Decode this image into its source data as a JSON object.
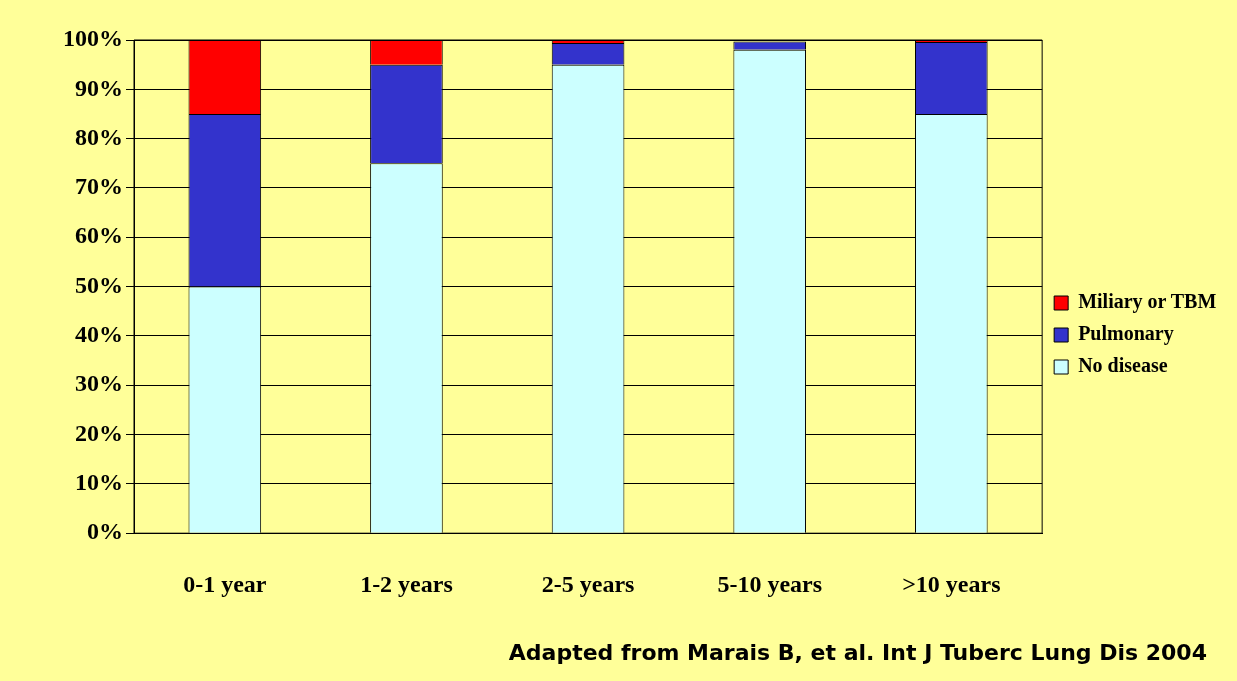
{
  "chart_data": {
    "type": "bar",
    "stacked": true,
    "categories": [
      "0-1 year",
      "1-2 years",
      "2-5 years",
      "5-10 years",
      ">10 years"
    ],
    "series": [
      {
        "name": "No disease",
        "color": "#ccffff",
        "values": [
          50,
          75,
          95,
          98,
          85
        ]
      },
      {
        "name": "Pulmonary",
        "color": "#3333cc",
        "values": [
          35,
          20,
          4.4,
          1.7,
          14.6
        ]
      },
      {
        "name": "Miliary or TBM",
        "color": "#ff0000",
        "values": [
          15,
          5,
          0.6,
          null,
          0.4
        ]
      }
    ],
    "ylim": [
      0,
      100
    ],
    "yticks": [
      {
        "value": 0,
        "label": "0%"
      },
      {
        "value": 10,
        "label": "10%"
      },
      {
        "value": 20,
        "label": "20%"
      },
      {
        "value": 30,
        "label": "30%"
      },
      {
        "value": 40,
        "label": "40%"
      },
      {
        "value": 50,
        "label": "50%"
      },
      {
        "value": 60,
        "label": "60%"
      },
      {
        "value": 70,
        "label": "70%"
      },
      {
        "value": 80,
        "label": "80%"
      },
      {
        "value": 90,
        "label": "90%"
      },
      {
        "value": 100,
        "label": "100%"
      }
    ],
    "grid": "y",
    "legend": "right",
    "annotations": [
      "Adapted from Marais B, et al. Int J Tuberc Lung Dis 2004"
    ]
  }
}
